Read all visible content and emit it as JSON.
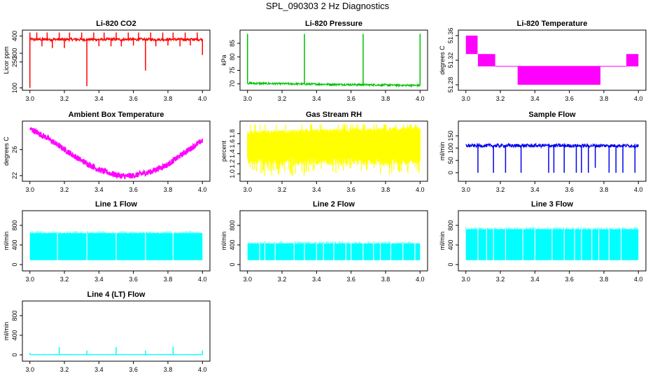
{
  "page": {
    "title": "SPL_090303  2 Hz Diagnostics"
  },
  "chart_data": [
    {
      "type": "line",
      "title": "Li-820 CO2",
      "ylabel": "Licor ppm",
      "xlabel": "",
      "xlim": [
        3.0,
        4.0
      ],
      "ylim": [
        100,
        420
      ],
      "xticks": [
        "3.0",
        "3.2",
        "3.4",
        "3.6",
        "3.8",
        "4.0"
      ],
      "yticks": [
        "100",
        "250",
        "300",
        "400"
      ],
      "color": "#ff0000",
      "baseline": 380,
      "noise": 8,
      "upward_spikes": [
        3.0,
        3.04,
        3.1,
        3.17,
        3.23,
        3.3,
        3.37,
        3.43,
        3.5,
        3.57,
        3.63,
        3.7,
        3.77,
        3.83,
        3.9,
        3.97
      ],
      "spike_peak": 420,
      "downward_spikes": [
        [
          3.0,
          100
        ],
        [
          3.07,
          340
        ],
        [
          3.13,
          330
        ],
        [
          3.2,
          330
        ],
        [
          3.33,
          110
        ],
        [
          3.4,
          340
        ],
        [
          3.47,
          340
        ],
        [
          3.53,
          340
        ],
        [
          3.6,
          345
        ],
        [
          3.67,
          200
        ],
        [
          3.73,
          340
        ],
        [
          3.8,
          345
        ],
        [
          3.87,
          340
        ],
        [
          3.93,
          345
        ],
        [
          4.0,
          290
        ]
      ]
    },
    {
      "type": "line",
      "title": "Li-820 Pressure",
      "ylabel": "kPa",
      "xlabel": "",
      "xlim": [
        3.0,
        4.0
      ],
      "ylim": [
        68.5,
        89
      ],
      "xticks": [
        "3.0",
        "3.2",
        "3.4",
        "3.6",
        "3.8",
        "4.0"
      ],
      "yticks": [
        "70",
        "75",
        "80",
        "85"
      ],
      "color": "#00c000",
      "baseline_start": 70.2,
      "baseline_end": 69.4,
      "noise": 0.35,
      "upward_spikes": [
        3.0,
        3.33,
        3.67,
        4.0
      ],
      "spike_peak": 88.5,
      "downward_spikes": []
    },
    {
      "type": "step",
      "title": "Li-820 Temperature",
      "ylabel": "degrees C",
      "xlabel": "",
      "xlim": [
        3.0,
        4.0
      ],
      "ylim": [
        51.275,
        51.365
      ],
      "xticks": [
        "3.0",
        "3.2",
        "3.4",
        "3.6",
        "3.8",
        "4.0"
      ],
      "yticks": [
        "51.28",
        "51.32",
        "51.36"
      ],
      "color": "#ff00ff",
      "bands": [
        {
          "x0": 3.0,
          "x1": 3.07,
          "y0": 51.33,
          "y1": 51.36
        },
        {
          "x0": 3.07,
          "x1": 3.17,
          "y0": 51.31,
          "y1": 51.33
        },
        {
          "x0": 3.3,
          "x1": 3.78,
          "y0": 51.28,
          "y1": 51.31
        },
        {
          "x0": 3.93,
          "x1": 4.0,
          "y0": 51.31,
          "y1": 51.33
        }
      ],
      "level": 51.31
    },
    {
      "type": "line",
      "title": "Ambient Box Temperature",
      "ylabel": "degrees C",
      "xlabel": "",
      "xlim": [
        3.0,
        4.0
      ],
      "ylim": [
        21.5,
        30
      ],
      "xticks": [
        "3.0",
        "3.2",
        "3.4",
        "3.6",
        "3.8",
        "4.0"
      ],
      "yticks": [
        "22",
        "26"
      ],
      "color": "#ff00ff",
      "curve": [
        [
          3.0,
          29.2
        ],
        [
          3.1,
          27.8
        ],
        [
          3.2,
          26.0
        ],
        [
          3.3,
          24.3
        ],
        [
          3.4,
          22.9
        ],
        [
          3.5,
          22.1
        ],
        [
          3.55,
          21.9
        ],
        [
          3.6,
          22.0
        ],
        [
          3.7,
          22.6
        ],
        [
          3.8,
          23.7
        ],
        [
          3.9,
          25.6
        ],
        [
          4.0,
          27.4
        ]
      ],
      "noise": 0.45
    },
    {
      "type": "area",
      "title": "Gas Stream RH",
      "ylabel": "percent",
      "xlabel": "",
      "xlim": [
        3.0,
        4.0
      ],
      "ylim": [
        0.9,
        2.0
      ],
      "xticks": [
        "3.0",
        "3.2",
        "3.4",
        "3.6",
        "3.8",
        "4.0"
      ],
      "yticks": [
        "1.0",
        "1.2",
        "1.4",
        "1.6",
        "1.8"
      ],
      "color": "#ffff00",
      "band_top_start": 1.82,
      "band_top_end": 1.9,
      "band_bottom": 1.25,
      "spike_low": 0.95,
      "spike_high": 1.98
    },
    {
      "type": "line",
      "title": "Sample Flow",
      "ylabel": "ml/min",
      "xlabel": "",
      "xlim": [
        3.0,
        4.0
      ],
      "ylim": [
        -25,
        200
      ],
      "xticks": [
        "3.0",
        "3.2",
        "3.4",
        "3.6",
        "3.8",
        "4.0"
      ],
      "yticks": [
        "0",
        "50",
        "100",
        "150"
      ],
      "color": "#0000ee",
      "baseline": 110,
      "noise": 7,
      "downward_spikes": [
        [
          3.07,
          0
        ],
        [
          3.16,
          0
        ],
        [
          3.23,
          0
        ],
        [
          3.32,
          0
        ],
        [
          3.48,
          0
        ],
        [
          3.51,
          0
        ],
        [
          3.57,
          0
        ],
        [
          3.64,
          0
        ],
        [
          3.67,
          0
        ],
        [
          3.71,
          0
        ],
        [
          3.75,
          20
        ],
        [
          3.83,
          0
        ],
        [
          3.87,
          0
        ],
        [
          3.91,
          0
        ],
        [
          3.98,
          0
        ]
      ]
    },
    {
      "type": "area",
      "title": "Line 1 Flow",
      "ylabel": "ml/min",
      "xlabel": "",
      "xlim": [
        3.0,
        4.0
      ],
      "ylim": [
        -80,
        1050
      ],
      "xticks": [
        "3.0",
        "3.2",
        "3.4",
        "3.6",
        "3.8",
        "4.0"
      ],
      "yticks": [
        "0",
        "400",
        "800"
      ],
      "color": "#00ffff",
      "band_top": 640,
      "band_bottom": 90,
      "gaps": [
        3.16,
        3.33,
        3.5,
        3.67,
        3.83
      ]
    },
    {
      "type": "area",
      "title": "Line 2 Flow",
      "ylabel": "ml/min",
      "xlabel": "",
      "xlim": [
        3.0,
        4.0
      ],
      "ylim": [
        -80,
        1050
      ],
      "xticks": [
        "3.0",
        "3.2",
        "3.4",
        "3.6",
        "3.8",
        "4.0"
      ],
      "yticks": [
        "0",
        "400",
        "800"
      ],
      "color": "#00ffff",
      "band_top": 430,
      "band_bottom": 90,
      "gaps": [
        3.07,
        3.1,
        3.16,
        3.27,
        3.33,
        3.4,
        3.44,
        3.5,
        3.57,
        3.6,
        3.67,
        3.73,
        3.77,
        3.83,
        3.9,
        3.97
      ]
    },
    {
      "type": "area",
      "title": "Line 3 Flow",
      "ylabel": "ml/min",
      "xlabel": "",
      "xlim": [
        3.0,
        4.0
      ],
      "ylim": [
        -80,
        1050
      ],
      "xticks": [
        "3.0",
        "3.2",
        "3.4",
        "3.6",
        "3.8",
        "4.0"
      ],
      "yticks": [
        "0",
        "400",
        "800"
      ],
      "color": "#00ffff",
      "band_top": 720,
      "band_bottom": 90,
      "gaps": [
        3.07,
        3.12,
        3.16,
        3.23,
        3.33,
        3.4,
        3.5,
        3.57,
        3.63,
        3.67,
        3.73,
        3.77,
        3.83,
        3.9
      ]
    },
    {
      "type": "line",
      "title": "Line 4 (LT) Flow",
      "ylabel": "ml/min",
      "xlabel": "",
      "xlim": [
        3.0,
        4.0
      ],
      "ylim": [
        -80,
        1050
      ],
      "xticks": [
        "3.0",
        "3.2",
        "3.4",
        "3.6",
        "3.8",
        "4.0"
      ],
      "yticks": [
        "0",
        "400",
        "800"
      ],
      "color": "#00ffff",
      "baseline": 5,
      "noise": 4,
      "upward_spikes": [
        [
          3.0,
          40
        ],
        [
          3.17,
          160
        ],
        [
          3.33,
          90
        ],
        [
          3.5,
          160
        ],
        [
          3.67,
          90
        ],
        [
          3.83,
          170
        ],
        [
          4.0,
          90
        ]
      ]
    }
  ]
}
